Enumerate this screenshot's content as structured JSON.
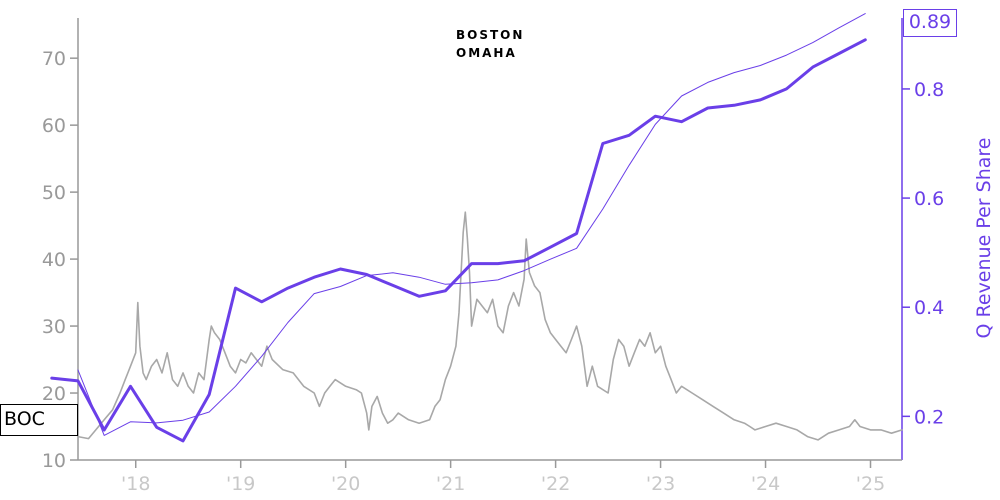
{
  "brand": {
    "line1": "BOSTON",
    "line2": "OMAHA"
  },
  "ticker": "BOC",
  "last_value_label": "0.89",
  "colors": {
    "price": "#a8a8a8",
    "revenue": "#6a3fe8",
    "axis": "#999999",
    "x_tick": "#c8c8c8"
  },
  "chart_data": {
    "type": "line",
    "title": "",
    "xlabel": "",
    "ylabel_left": "",
    "ylabel_right": "Q Revenue Per Share",
    "x_tick_labels": [
      "'18",
      "'19",
      "'20",
      "'21",
      "'22",
      "'23",
      "'24",
      "'25"
    ],
    "x_tick_years": [
      2018,
      2019,
      2020,
      2021,
      2022,
      2023,
      2024,
      2025
    ],
    "xlim": [
      2017.45,
      2025.3
    ],
    "y_left": {
      "lim": [
        10,
        76
      ],
      "ticks": [
        10,
        20,
        30,
        40,
        50,
        60,
        70
      ]
    },
    "y_right": {
      "lim": [
        0.12,
        0.93
      ],
      "ticks": [
        0.2,
        0.4,
        0.6,
        0.8
      ]
    },
    "series": [
      {
        "name": "BOC",
        "axis": "left",
        "x": [
          2017.45,
          2017.55,
          2017.62,
          2017.7,
          2017.78,
          2017.85,
          2017.9,
          2017.95,
          2018.0,
          2018.02,
          2018.04,
          2018.07,
          2018.1,
          2018.15,
          2018.2,
          2018.25,
          2018.3,
          2018.35,
          2018.4,
          2018.45,
          2018.5,
          2018.55,
          2018.6,
          2018.65,
          2018.7,
          2018.72,
          2018.75,
          2018.8,
          2018.85,
          2018.9,
          2018.95,
          2019.0,
          2019.05,
          2019.1,
          2019.15,
          2019.2,
          2019.25,
          2019.3,
          2019.4,
          2019.5,
          2019.6,
          2019.7,
          2019.75,
          2019.8,
          2019.85,
          2019.9,
          2020.0,
          2020.1,
          2020.15,
          2020.2,
          2020.22,
          2020.25,
          2020.3,
          2020.35,
          2020.4,
          2020.45,
          2020.5,
          2020.6,
          2020.7,
          2020.8,
          2020.85,
          2020.9,
          2020.95,
          2021.0,
          2021.05,
          2021.08,
          2021.1,
          2021.12,
          2021.14,
          2021.16,
          2021.18,
          2021.2,
          2021.25,
          2021.3,
          2021.35,
          2021.4,
          2021.45,
          2021.5,
          2021.55,
          2021.6,
          2021.65,
          2021.7,
          2021.72,
          2021.75,
          2021.8,
          2021.85,
          2021.9,
          2021.95,
          2022.0,
          2022.05,
          2022.1,
          2022.15,
          2022.2,
          2022.25,
          2022.3,
          2022.35,
          2022.4,
          2022.5,
          2022.55,
          2022.6,
          2022.65,
          2022.7,
          2022.75,
          2022.8,
          2022.85,
          2022.9,
          2022.95,
          2023.0,
          2023.05,
          2023.1,
          2023.15,
          2023.2,
          2023.3,
          2023.4,
          2023.5,
          2023.6,
          2023.7,
          2023.8,
          2023.85,
          2023.9,
          2024.0,
          2024.1,
          2024.2,
          2024.3,
          2024.4,
          2024.5,
          2024.6,
          2024.7,
          2024.8,
          2024.85,
          2024.9,
          2025.0,
          2025.1,
          2025.2,
          2025.3
        ],
        "values": [
          13.5,
          13.2,
          14.5,
          16,
          17.5,
          20,
          22,
          24,
          26,
          33.5,
          27,
          23,
          22,
          24,
          25,
          23,
          26,
          22,
          21,
          23,
          21,
          20,
          23,
          22,
          28,
          30,
          29,
          28,
          26,
          24,
          23,
          25,
          24.5,
          26,
          25,
          24,
          27,
          25,
          23.5,
          23,
          21,
          20,
          18,
          20,
          21,
          22,
          21,
          20.5,
          20,
          17,
          14.5,
          18,
          19.5,
          17,
          15.5,
          16,
          17,
          16,
          15.5,
          16,
          18,
          19,
          22,
          24,
          27,
          32,
          38,
          44,
          47,
          43,
          38,
          30,
          34,
          33,
          32,
          34,
          30,
          29,
          33,
          35,
          33,
          37,
          43,
          38,
          36,
          35,
          31,
          29,
          28,
          27,
          26,
          28,
          30,
          27,
          21,
          24,
          21,
          20,
          25,
          28,
          27,
          24,
          26,
          28,
          27,
          29,
          26,
          27,
          24,
          22,
          20,
          21,
          20,
          19,
          18,
          17,
          16,
          15.5,
          15,
          14.5,
          15,
          15.5,
          15,
          14.5,
          13.5,
          13,
          14,
          14.5,
          15,
          16,
          15,
          14.5,
          14.5,
          14,
          14.5
        ]
      },
      {
        "name": "",
        "axis": "right",
        "x": [
          2017.45,
          2017.7,
          2017.95,
          2018.2,
          2018.45,
          2018.7,
          2018.95,
          2019.2,
          2019.45,
          2019.7,
          2019.95,
          2020.2,
          2020.45,
          2020.7,
          2020.95,
          2021.2,
          2021.45,
          2021.7,
          2021.95,
          2022.2,
          2022.45,
          2022.7,
          2022.95,
          2023.2,
          2023.45,
          2023.7,
          2023.95,
          2024.2,
          2024.45,
          2024.7,
          2024.95
        ],
        "values": [
          0.285,
          0.165,
          0.19,
          0.188,
          0.193,
          0.208,
          0.255,
          0.31,
          0.372,
          0.425,
          0.438,
          0.458,
          0.463,
          0.455,
          0.442,
          0.445,
          0.45,
          0.467,
          0.488,
          0.508,
          0.58,
          0.66,
          0.735,
          0.787,
          0.812,
          0.83,
          0.843,
          0.862,
          0.885,
          0.912,
          0.938
        ]
      },
      {
        "name": "",
        "axis": "right",
        "x": [
          2017.2,
          2017.45,
          2017.7,
          2017.95,
          2018.2,
          2018.45,
          2018.7,
          2018.95,
          2019.2,
          2019.45,
          2019.7,
          2019.95,
          2020.2,
          2020.45,
          2020.7,
          2020.95,
          2021.2,
          2021.45,
          2021.7,
          2021.95,
          2022.2,
          2022.45,
          2022.7,
          2022.95,
          2023.2,
          2023.45,
          2023.7,
          2023.95,
          2024.2,
          2024.45,
          2024.7,
          2024.95
        ],
        "values": [
          0.27,
          0.265,
          0.175,
          0.255,
          0.18,
          0.155,
          0.24,
          0.435,
          0.41,
          0.435,
          0.455,
          0.47,
          0.46,
          0.44,
          0.42,
          0.43,
          0.48,
          0.48,
          0.485,
          0.51,
          0.535,
          0.7,
          0.715,
          0.75,
          0.74,
          0.765,
          0.77,
          0.78,
          0.8,
          0.84,
          0.865,
          0.89
        ]
      }
    ]
  }
}
